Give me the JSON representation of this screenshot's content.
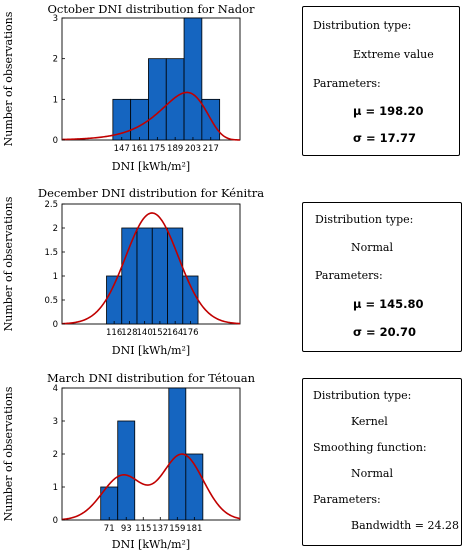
{
  "colors": {
    "bar": "#1565C0",
    "bar_edge": "#000000",
    "curve": "#C00000"
  },
  "chart_data": [
    {
      "type": "bar",
      "title": "October DNI distribution for Nador",
      "xlabel": "DNI [kWh/m²]",
      "ylabel": "Number of observations",
      "xlim": [
        100,
        240
      ],
      "ylim": [
        0,
        3
      ],
      "yticks": [
        0,
        1,
        2,
        3
      ],
      "bin_width": 14,
      "x_tick_labels": [
        "147",
        "161",
        "175",
        "189",
        "203",
        "217"
      ],
      "bins": [
        {
          "x": 147,
          "count": 1
        },
        {
          "x": 161,
          "count": 1
        },
        {
          "x": 175,
          "count": 2
        },
        {
          "x": 189,
          "count": 2
        },
        {
          "x": 203,
          "count": 3
        },
        {
          "x": 217,
          "count": 1
        }
      ],
      "fit": {
        "type": "Extreme value",
        "mu": 198.2,
        "sigma": 17.77,
        "scale": 56.5
      }
    },
    {
      "type": "bar",
      "title": "December DNI distribution for Kénitra",
      "xlabel": "DNI [kWh/m²]",
      "ylabel": "Number of observations",
      "xlim": [
        75,
        215
      ],
      "ylim": [
        0,
        2.5
      ],
      "yticks": [
        0,
        0.5,
        1,
        1.5,
        2,
        2.5
      ],
      "bin_width": 12,
      "x_tick_labels": [
        "116",
        "128",
        "140",
        "152",
        "164",
        "176"
      ],
      "bins": [
        {
          "x": 116,
          "count": 1
        },
        {
          "x": 128,
          "count": 2
        },
        {
          "x": 140,
          "count": 2
        },
        {
          "x": 152,
          "count": 2
        },
        {
          "x": 164,
          "count": 2
        },
        {
          "x": 176,
          "count": 1
        }
      ],
      "fit": {
        "type": "Normal",
        "mu": 145.8,
        "sigma": 20.7,
        "scale": 120
      }
    },
    {
      "type": "bar",
      "title": "March DNI distribution for Tétouan",
      "xlabel": "DNI [kWh/m²]",
      "ylabel": "Number of observations",
      "xlim": [
        10,
        240
      ],
      "ylim": [
        0,
        4
      ],
      "yticks": [
        0,
        1,
        2,
        3,
        4
      ],
      "bin_width": 22,
      "x_tick_labels": [
        "71",
        "93",
        "115",
        "137",
        "159",
        "181"
      ],
      "bins": [
        {
          "x": 71,
          "count": 1
        },
        {
          "x": 93,
          "count": 3
        },
        {
          "x": 115,
          "count": 0
        },
        {
          "x": 137,
          "count": 0
        },
        {
          "x": 159,
          "count": 4
        },
        {
          "x": 181,
          "count": 2
        }
      ],
      "fit": {
        "type": "Kernel",
        "smoothing": "Normal",
        "bandwidth": 24.28,
        "scale": 220,
        "points": [
          71,
          93,
          159,
          159,
          159,
          159,
          181,
          181,
          93,
          93
        ]
      }
    }
  ],
  "info_boxes": [
    {
      "lines": [
        "Distribution type:",
        "Extreme value",
        "Parameters:",
        "μ = 198.20",
        "σ = 17.77"
      ]
    },
    {
      "lines": [
        "Distribution type:",
        "Normal",
        "Parameters:",
        "μ = 145.80",
        "σ = 20.70"
      ]
    },
    {
      "lines": [
        "Distribution type:",
        "Kernel",
        "Smoothing function:",
        "Normal",
        "Parameters:",
        "Bandwidth = 24.28"
      ]
    }
  ]
}
